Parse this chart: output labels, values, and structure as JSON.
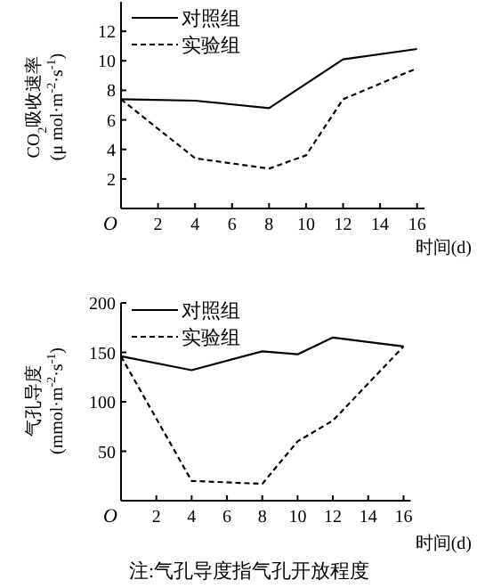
{
  "chart_data": [
    {
      "type": "line",
      "xlabel": "时间(d)",
      "ylabel": "CO$_{2}$吸收速率(μ mol·m$^{-2}$·s$^{-1}$)",
      "legend": "top left",
      "x": [
        0,
        4,
        8,
        12,
        16
      ],
      "xlim": [
        0,
        16.4
      ],
      "ylim": [
        0,
        14
      ],
      "xticks": [
        {
          "value": 0,
          "label": "O"
        },
        2,
        4,
        6,
        8,
        10,
        12,
        14,
        16
      ],
      "yticks": [
        2,
        4,
        6,
        8,
        10,
        12
      ],
      "series": [
        {
          "name": "对照组",
          "color": "#000000",
          "line_style": "solid",
          "values": [
            7.4,
            7.3,
            6.8,
            10.1,
            10.8
          ]
        },
        {
          "name": "实验组",
          "color": "#000000",
          "line_style": "dashed",
          "x": [
            0,
            4,
            8,
            10,
            12,
            16
          ],
          "values": [
            7.4,
            3.4,
            2.7,
            3.6,
            7.4,
            9.5
          ]
        }
      ]
    },
    {
      "type": "line",
      "xlabel": "时间(d)",
      "ylabel": "气孔导度(mmol·m$^{-2}$·s$^{-1}$)",
      "legend": "top left",
      "x": [
        0,
        4,
        8,
        10,
        12,
        16
      ],
      "xlim": [
        0,
        16.4
      ],
      "ylim": [
        0,
        200
      ],
      "xticks": [
        {
          "value": 0,
          "label": "O"
        },
        2,
        4,
        6,
        8,
        10,
        12,
        14,
        16
      ],
      "yticks": [
        50,
        100,
        150,
        200
      ],
      "annotations": [
        "注:气孔导度指气孔开放程度"
      ],
      "series": [
        {
          "name": "对照组",
          "color": "#000000",
          "line_style": "solid",
          "values": [
            146,
            132,
            151,
            148,
            165,
            156
          ]
        },
        {
          "name": "实验组",
          "color": "#000000",
          "line_style": "dashed",
          "values": [
            146,
            20,
            17,
            60,
            81,
            156
          ]
        }
      ]
    }
  ]
}
